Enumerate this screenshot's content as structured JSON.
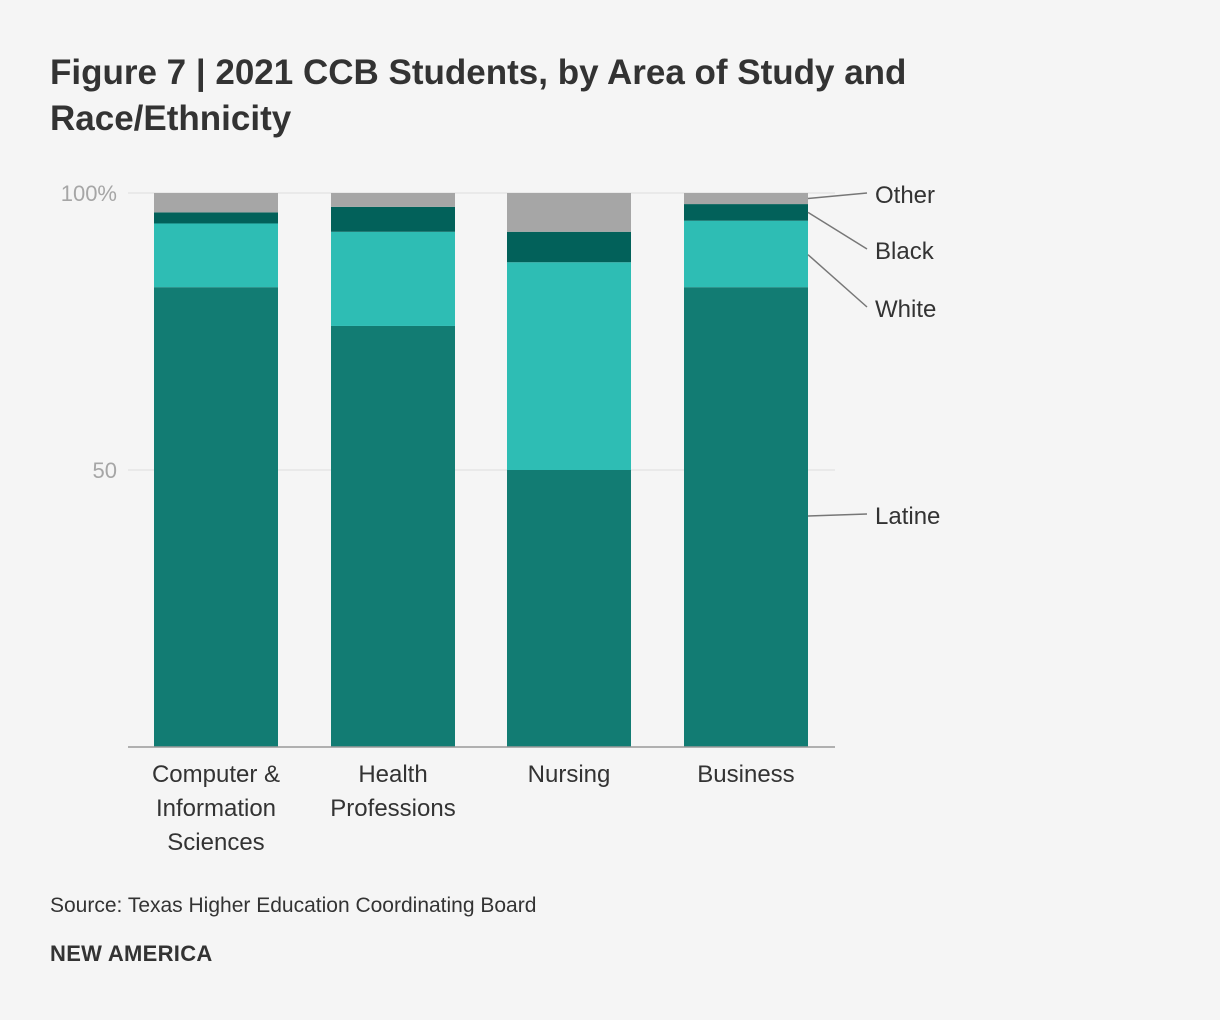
{
  "title": "Figure 7 | 2021 CCB Students, by Area of Study and Race/Ethnicity",
  "source": "Source: Texas Higher Education Coordinating Board",
  "brand": "NEW AMERICA",
  "chart_data": {
    "type": "bar",
    "stacked": true,
    "title": "Figure 7 | 2021 CCB Students, by Area of Study and Race/Ethnicity",
    "xlabel": "",
    "ylabel": "",
    "ylim": [
      0,
      100
    ],
    "y_ticks": [
      {
        "value": 50,
        "label": "50"
      },
      {
        "value": 100,
        "label": "100%"
      }
    ],
    "categories": [
      [
        "Computer &",
        "Information",
        "Sciences"
      ],
      [
        "Health",
        "Professions"
      ],
      [
        "Nursing"
      ],
      [
        "Business"
      ]
    ],
    "series": [
      {
        "name": "Latine",
        "color": "#127c73",
        "values": [
          83,
          76,
          50,
          83
        ]
      },
      {
        "name": "White",
        "color": "#2ebdb4",
        "values": [
          11.5,
          17,
          37.5,
          12
        ]
      },
      {
        "name": "Black",
        "color": "#02615a",
        "values": [
          2,
          4.5,
          5.5,
          3
        ]
      },
      {
        "name": "Other",
        "color": "#a6a6a6",
        "values": [
          3.5,
          2.5,
          7,
          2
        ]
      }
    ],
    "legend": "right, end-labeled",
    "grid": true
  }
}
